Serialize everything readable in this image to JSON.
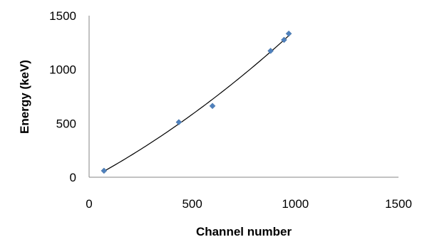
{
  "chart_data": {
    "type": "scatter",
    "title": "",
    "xlabel": "Channel number",
    "ylabel": "Energy (keV)",
    "xlim": [
      0,
      1500
    ],
    "ylim": [
      0,
      1500
    ],
    "x_ticks": [
      "0",
      "500",
      "1000",
      "1500"
    ],
    "y_ticks": [
      "0",
      "500",
      "1000",
      "1500"
    ],
    "grid": false,
    "legend": "none",
    "series": [
      {
        "marker": "diamond",
        "color": "#4f81bd",
        "points": [
          {
            "x": 72,
            "y": 60
          },
          {
            "x": 435,
            "y": 511
          },
          {
            "x": 598,
            "y": 662
          },
          {
            "x": 880,
            "y": 1173
          },
          {
            "x": 945,
            "y": 1275
          },
          {
            "x": 968,
            "y": 1333
          }
        ]
      }
    ],
    "trendline": {
      "type": "polynomial",
      "color": "#000000",
      "x_range": [
        72,
        968
      ],
      "coefficients": [
        -20.5,
        1.027,
        0.000363
      ]
    }
  }
}
